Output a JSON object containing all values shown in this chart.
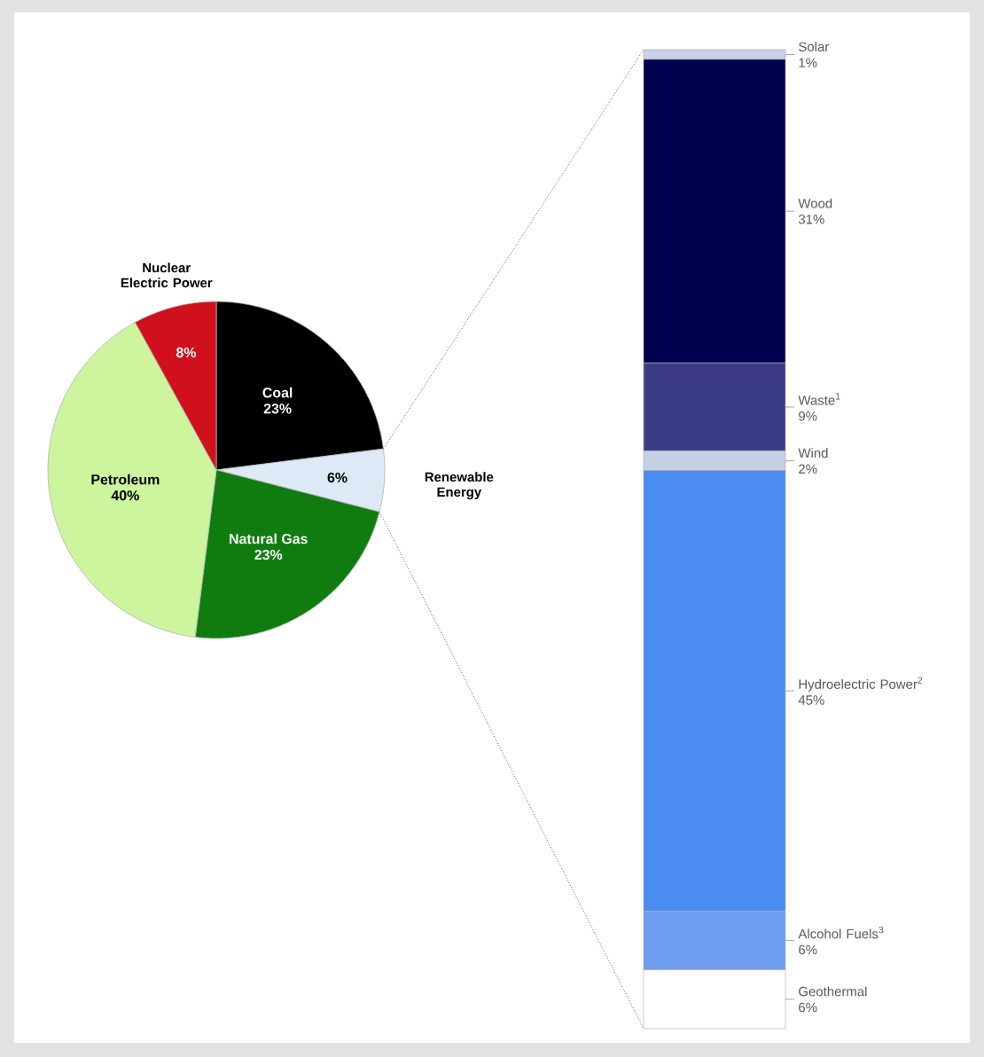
{
  "chart_data": [
    {
      "type": "pie",
      "categories": [
        "Coal",
        "Renewable Energy",
        "Natural Gas",
        "Petroleum",
        "Nuclear Electric Power"
      ],
      "values": [
        23,
        6,
        23,
        40,
        8
      ],
      "colors": [
        "#000000",
        "#dde9f7",
        "#107c10",
        "#ccf59e",
        "#d0101c"
      ],
      "value_labels": [
        "23%",
        "6%",
        "23%",
        "40%",
        "8%"
      ]
    },
    {
      "type": "bar",
      "stacked": true,
      "tick_labels": false,
      "legend": "right",
      "categories": [
        null
      ],
      "series": [
        {
          "name": "Geothermal",
          "color": "#ffffff",
          "values": [
            6
          ],
          "value_labels": [
            "6%"
          ]
        },
        {
          "name": "Alcohol Fuels$^{3}$",
          "color": "#6f9ef0",
          "values": [
            6
          ],
          "value_labels": [
            "6%"
          ]
        },
        {
          "name": "Hydroelectric Power$^{2}$",
          "color": "#4a8cf0",
          "values": [
            45
          ],
          "value_labels": [
            "45%"
          ]
        },
        {
          "name": "Wind",
          "color": "#c4d0e4",
          "values": [
            2
          ],
          "value_labels": [
            "2%"
          ]
        },
        {
          "name": "Waste$^{1}$",
          "color": "#3c3c86",
          "values": [
            9
          ],
          "value_labels": [
            "9%"
          ]
        },
        {
          "name": "Wood",
          "color": "#00004f",
          "values": [
            31
          ],
          "value_labels": [
            "31%"
          ]
        },
        {
          "name": "Solar",
          "color": "#c8d0ea",
          "values": [
            1
          ],
          "value_labels": [
            "1%"
          ]
        }
      ]
    }
  ]
}
